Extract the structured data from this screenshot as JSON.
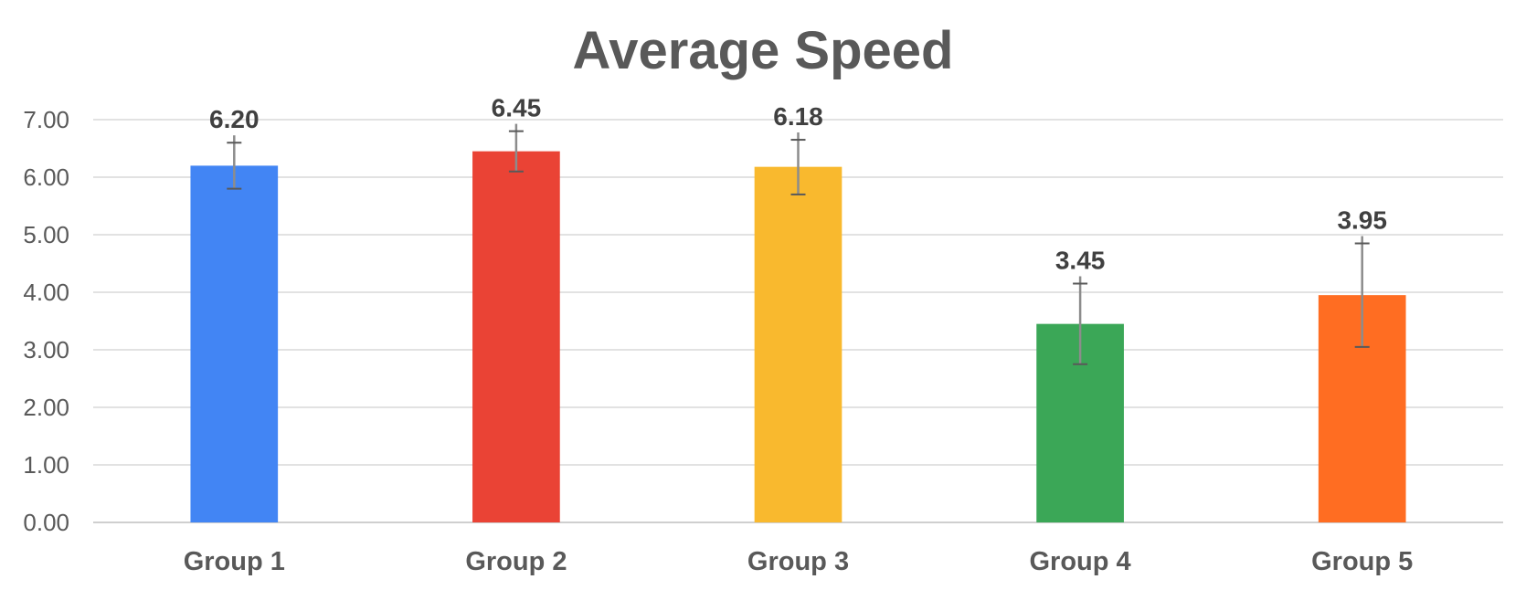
{
  "chart_data": {
    "type": "bar",
    "title": "Average Speed",
    "xlabel": "",
    "ylabel": "",
    "categories": [
      "Group 1",
      "Group 2",
      "Group 3",
      "Group 4",
      "Group 5"
    ],
    "values": [
      6.2,
      6.45,
      6.18,
      3.45,
      3.95
    ],
    "data_labels": [
      "6.20",
      "6.45",
      "6.18",
      "3.45",
      "3.95"
    ],
    "error_low": [
      5.8,
      6.1,
      5.7,
      2.75,
      3.05
    ],
    "error_high": [
      6.6,
      6.8,
      6.65,
      4.15,
      4.85
    ],
    "colors": [
      "#4285F4",
      "#EA4335",
      "#F9B92E",
      "#3BA757",
      "#FF6D22"
    ],
    "ylim": [
      0,
      7
    ],
    "yticks": [
      "0.00",
      "1.00",
      "2.00",
      "3.00",
      "4.00",
      "5.00",
      "6.00",
      "7.00"
    ],
    "grid": true,
    "legend": "none"
  }
}
